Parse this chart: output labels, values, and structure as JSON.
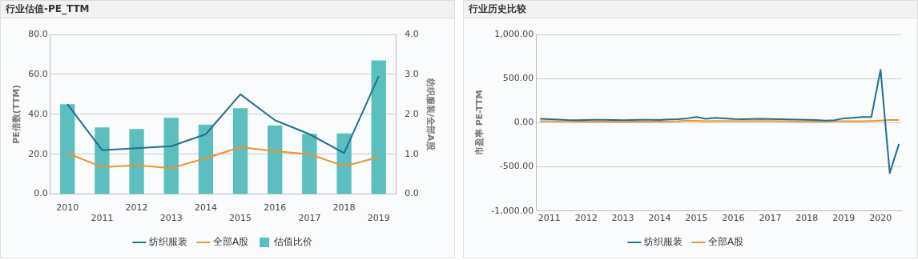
{
  "chart_data": [
    {
      "type": "bar",
      "title": "行业估值-PE_TTM",
      "ylabel": "PE倍数(TTM)",
      "y2label": "纺织服装/全部A股",
      "categories": [
        "2010",
        "2011",
        "2012",
        "2013",
        "2014",
        "2015",
        "2016",
        "2017",
        "2018",
        "2019"
      ],
      "series": [
        {
          "name": "纺织服装",
          "type": "line",
          "color": "#236f8f",
          "values": [
            45,
            22,
            23,
            24,
            30,
            50,
            37,
            30,
            20.5,
            59
          ]
        },
        {
          "name": "全部A股",
          "type": "line",
          "color": "#f0922a",
          "values": [
            20.5,
            13.5,
            14.5,
            13,
            18,
            23.5,
            21.5,
            20,
            14,
            18.5
          ]
        },
        {
          "name": "估值比价",
          "type": "bar",
          "axis": "y2",
          "color": "#5bbfbf",
          "values": [
            2.25,
            1.67,
            1.63,
            1.91,
            1.74,
            2.15,
            1.72,
            1.51,
            1.52,
            3.35
          ]
        }
      ],
      "ylim": [
        0,
        80
      ],
      "yticks": [
        {
          "value": 0,
          "label": "0.0"
        },
        {
          "value": 20,
          "label": "20.0"
        },
        {
          "value": 40,
          "label": "40.0"
        },
        {
          "value": 60,
          "label": "60.0"
        },
        {
          "value": 80,
          "label": "80.0"
        }
      ],
      "y2lim": [
        0,
        4
      ],
      "y2ticks": [
        {
          "value": 0,
          "label": "0.0"
        },
        {
          "value": 1,
          "label": "1.0"
        },
        {
          "value": 2,
          "label": "2.0"
        },
        {
          "value": 3,
          "label": "3.0"
        },
        {
          "value": 4,
          "label": "4.0"
        }
      ],
      "grid": "y",
      "legend": "bottom"
    },
    {
      "type": "line",
      "title": "行业历史比较",
      "ylabel": "市盈率 PE-TTM",
      "x": [
        2011.25,
        2011.5,
        2011.75,
        2012,
        2012.25,
        2012.5,
        2012.75,
        2013,
        2013.25,
        2013.5,
        2013.75,
        2014,
        2014.25,
        2014.5,
        2014.75,
        2015,
        2015.25,
        2015.5,
        2015.75,
        2016,
        2016.25,
        2016.5,
        2016.75,
        2017,
        2017.25,
        2017.5,
        2017.75,
        2018,
        2018.25,
        2018.5,
        2018.75,
        2019,
        2019.25,
        2019.5,
        2019.75,
        2020,
        2020.25,
        2020.5,
        2020.75,
        2021
      ],
      "series": [
        {
          "name": "纺织服装",
          "color": "#236f8f",
          "values": [
            45,
            40,
            35,
            30,
            28,
            30,
            32,
            33,
            30,
            28,
            30,
            32,
            32,
            30,
            38,
            40,
            50,
            65,
            45,
            55,
            50,
            42,
            40,
            42,
            45,
            42,
            40,
            38,
            35,
            33,
            30,
            25,
            28,
            50,
            55,
            65,
            65,
            600,
            -570,
            -240
          ]
        },
        {
          "name": "全部A股",
          "color": "#f0922a",
          "values": [
            18,
            17,
            16,
            14,
            13,
            13,
            13,
            13,
            12,
            11,
            12,
            13,
            13,
            12,
            15,
            18,
            25,
            22,
            18,
            20,
            20,
            20,
            20,
            20,
            20,
            19,
            18,
            18,
            16,
            14,
            13,
            14,
            18,
            18,
            17,
            18,
            20,
            24,
            30,
            30
          ]
        }
      ],
      "xlim": [
        2011.14,
        2021.06
      ],
      "xticks": [
        {
          "value": 2011.5,
          "label": "2011"
        },
        {
          "value": 2012.5,
          "label": "2012"
        },
        {
          "value": 2013.5,
          "label": "2013"
        },
        {
          "value": 2014.5,
          "label": "2014"
        },
        {
          "value": 2015.5,
          "label": "2015"
        },
        {
          "value": 2016.5,
          "label": "2016"
        },
        {
          "value": 2017.5,
          "label": "2017"
        },
        {
          "value": 2018.5,
          "label": "2018"
        },
        {
          "value": 2019.5,
          "label": "2019"
        },
        {
          "value": 2020.5,
          "label": "2020"
        }
      ],
      "ylim": [
        -1000,
        1000
      ],
      "yticks": [
        {
          "value": -1000,
          "label": "-1,000.00"
        },
        {
          "value": -500,
          "label": "-500.00"
        },
        {
          "value": 0,
          "label": "0.00"
        },
        {
          "value": 500,
          "label": "500.00"
        },
        {
          "value": 1000,
          "label": "1,000.00"
        }
      ],
      "grid": "y",
      "legend": "bottom"
    }
  ]
}
